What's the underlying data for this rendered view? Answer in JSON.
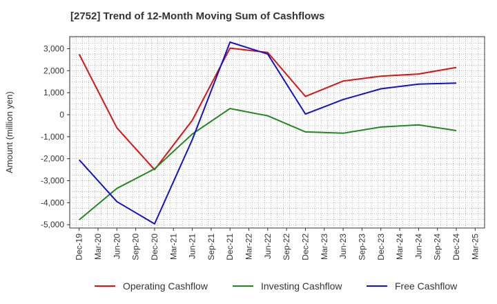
{
  "chart_data": {
    "type": "line",
    "title": "[2752]  Trend of 12-Month Moving Sum of Cashflows",
    "xlabel": "",
    "ylabel": "Amount (million yen)",
    "ylim": [
      -5150,
      3550
    ],
    "yticks": [
      3000,
      2000,
      1000,
      0,
      -1000,
      -2000,
      -3000,
      -4000,
      -5000
    ],
    "ytick_labels": [
      "3,000",
      "2,000",
      "1,000",
      "0",
      "-1,000",
      "-2,000",
      "-3,000",
      "-4,000",
      "-5,000"
    ],
    "categories": [
      "Dec-19",
      "Mar-20",
      "Jun-20",
      "Sep-20",
      "Dec-20",
      "Mar-21",
      "Jun-21",
      "Sep-21",
      "Dec-21",
      "Mar-22",
      "Jun-22",
      "Sep-22",
      "Dec-22",
      "Mar-23",
      "Jun-23",
      "Sep-23",
      "Dec-23",
      "Mar-24",
      "Jun-24",
      "Sep-24",
      "Dec-24",
      "Mar-25"
    ],
    "grid": true,
    "legend_position": "bottom",
    "series": [
      {
        "name": "Operating Cashflow",
        "color": "#dd1111",
        "values": [
          2750,
          null,
          -600,
          null,
          -2500,
          null,
          -250,
          null,
          3030,
          null,
          2830,
          null,
          830,
          null,
          1530,
          null,
          1750,
          null,
          1850,
          null,
          2150,
          null
        ]
      },
      {
        "name": "Investing Cashflow",
        "color": "#228822",
        "values": [
          -4780,
          null,
          -3350,
          null,
          -2460,
          null,
          -880,
          null,
          280,
          null,
          -50,
          null,
          -780,
          null,
          -840,
          null,
          -560,
          null,
          -460,
          null,
          -720,
          null
        ]
      },
      {
        "name": "Free Cashflow",
        "color": "#1111cc",
        "values": [
          -2050,
          null,
          -3950,
          null,
          -4960,
          null,
          -1130,
          null,
          3300,
          null,
          2760,
          null,
          30,
          null,
          690,
          null,
          1180,
          null,
          1390,
          null,
          1440,
          null
        ]
      }
    ]
  }
}
